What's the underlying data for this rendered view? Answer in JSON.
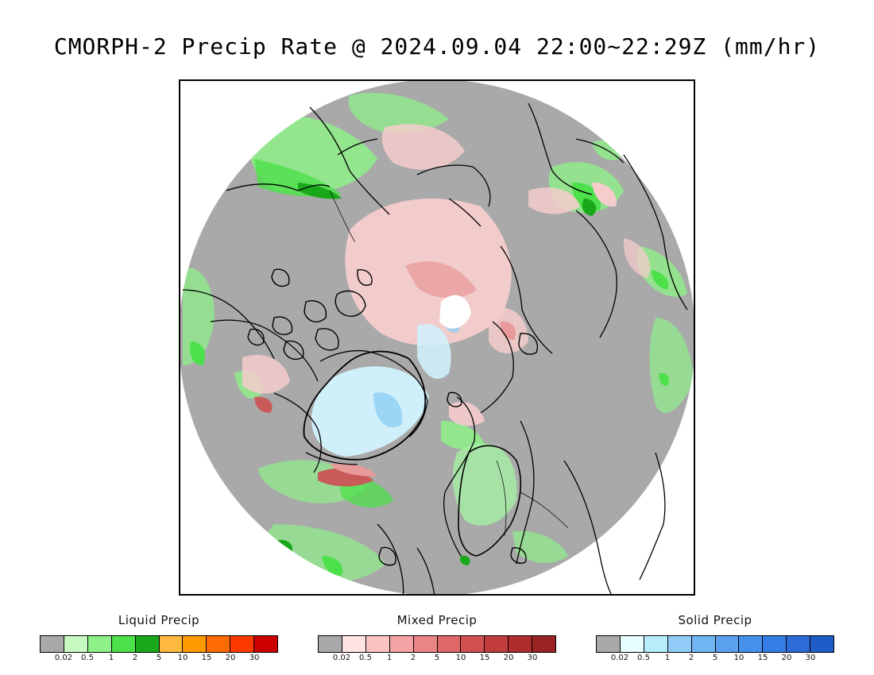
{
  "title": "CMORPH-2 Precip Rate @ 2024.09.04 22:00~22:29Z (mm/hr)",
  "map": {
    "projection": "north polar stereographic",
    "colors": {
      "no_precip": "#a9a9a9",
      "outline": "#000000",
      "liquid_light": "#a6f5a6",
      "liquid_mid": "#54e054",
      "liquid_dark": "#1fa81f",
      "mixed_light": "#f6cccc",
      "mixed_mid": "#e89a9a",
      "mixed_dark": "#c95a5a",
      "solid_light": "#cfeffb",
      "solid_mid": "#8ed0f5",
      "blank": "#ffffff"
    }
  },
  "legends": [
    {
      "title": "Liquid Precip",
      "colors": [
        "#a9a9a9",
        "#c7fac1",
        "#8ff08a",
        "#4ce04a",
        "#19a819",
        "#fcb93e",
        "#ff9a00",
        "#ff6b00",
        "#ff3a00",
        "#cc0000"
      ],
      "ticks": [
        "0.02",
        "0.5",
        "1",
        "2",
        "5",
        "10",
        "15",
        "20",
        "30"
      ]
    },
    {
      "title": "Mixed Precip",
      "colors": [
        "#a9a9a9",
        "#ffe3e3",
        "#fcc3c3",
        "#f4a4a4",
        "#eb8585",
        "#e06767",
        "#d24f4f",
        "#c23c3c",
        "#b02c2c",
        "#992222"
      ],
      "ticks": [
        "0.02",
        "0.5",
        "1",
        "2",
        "5",
        "10",
        "15",
        "20",
        "30"
      ]
    },
    {
      "title": "Solid Precip",
      "colors": [
        "#a9a9a9",
        "#e6fdff",
        "#b8eefc",
        "#90ccf7",
        "#72b5f3",
        "#5aa2f0",
        "#4690ec",
        "#357de5",
        "#2b6cd9",
        "#1e5cc8"
      ],
      "ticks": [
        "0.02",
        "0.5",
        "1",
        "2",
        "5",
        "10",
        "15",
        "20",
        "30"
      ]
    }
  ]
}
